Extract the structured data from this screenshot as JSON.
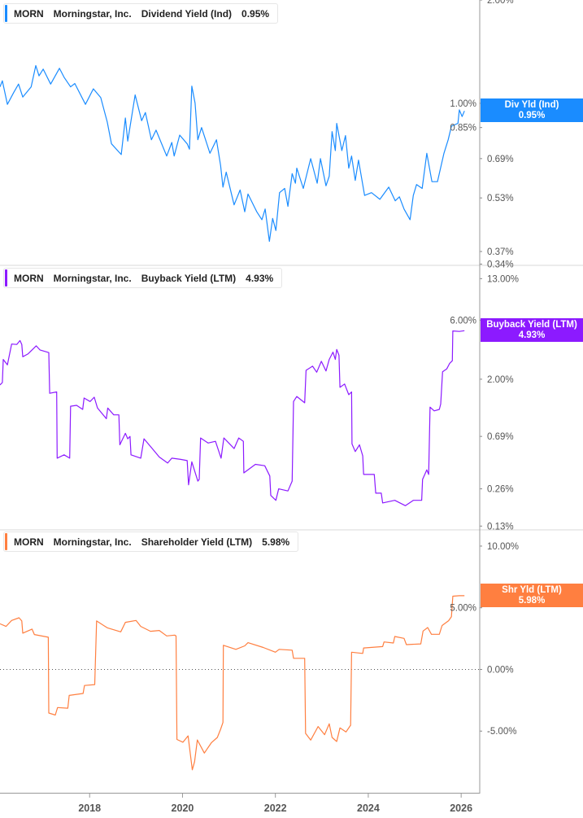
{
  "colors": {
    "div": "#1a8cff",
    "buyback": "#8c1aff",
    "shr": "#ff7f40",
    "axis": "#888888"
  },
  "chart_data": [
    {
      "type": "line",
      "legend": {
        "ticker": "MORN",
        "company": "Morningstar, Inc.",
        "metric": "Dividend Yield (Ind)",
        "value": "0.95%"
      },
      "badge": {
        "label": "Div Yld (Ind)",
        "value": "0.95%"
      },
      "yscale": "log",
      "ylim": [
        0.339,
        2.0
      ],
      "yticks": [
        2.0,
        1.0,
        0.85,
        0.69,
        0.53,
        0.37,
        0.34
      ],
      "ytick_labels": [
        "2.00%",
        "1.00%",
        "0.85%",
        "0.69%",
        "0.53%",
        "0.37%",
        "0.34%"
      ],
      "points": [
        [
          2016.07,
          1.117
        ],
        [
          2016.12,
          1.163
        ],
        [
          2016.23,
          0.993
        ],
        [
          2016.37,
          1.078
        ],
        [
          2016.47,
          1.138
        ],
        [
          2016.56,
          1.043
        ],
        [
          2016.74,
          1.117
        ],
        [
          2016.84,
          1.288
        ],
        [
          2016.91,
          1.202
        ],
        [
          2017.0,
          1.258
        ],
        [
          2017.16,
          1.138
        ],
        [
          2017.35,
          1.265
        ],
        [
          2017.45,
          1.191
        ],
        [
          2017.59,
          1.117
        ],
        [
          2017.68,
          1.142
        ],
        [
          2017.91,
          0.993
        ],
        [
          2018.08,
          1.102
        ],
        [
          2018.24,
          1.039
        ],
        [
          2018.38,
          0.882
        ],
        [
          2018.47,
          0.762
        ],
        [
          2018.68,
          0.709
        ],
        [
          2018.77,
          0.906
        ],
        [
          2018.82,
          0.776
        ],
        [
          2018.98,
          1.058
        ],
        [
          2019.12,
          0.89
        ],
        [
          2019.2,
          0.94
        ],
        [
          2019.33,
          0.783
        ],
        [
          2019.43,
          0.835
        ],
        [
          2019.66,
          0.702
        ],
        [
          2019.77,
          0.769
        ],
        [
          2019.82,
          0.702
        ],
        [
          2019.94,
          0.808
        ],
        [
          2020.1,
          0.762
        ],
        [
          2020.15,
          0.735
        ],
        [
          2020.2,
          1.122
        ],
        [
          2020.27,
          1.002
        ],
        [
          2020.33,
          0.783
        ],
        [
          2020.41,
          0.85
        ],
        [
          2020.59,
          0.715
        ],
        [
          2020.73,
          0.783
        ],
        [
          2020.82,
          0.659
        ],
        [
          2020.87,
          0.57
        ],
        [
          2020.94,
          0.63
        ],
        [
          2021.11,
          0.506
        ],
        [
          2021.24,
          0.559
        ],
        [
          2021.34,
          0.483
        ],
        [
          2021.41,
          0.544
        ],
        [
          2021.6,
          0.483
        ],
        [
          2021.71,
          0.458
        ],
        [
          2021.78,
          0.492
        ],
        [
          2021.87,
          0.396
        ],
        [
          2021.94,
          0.462
        ],
        [
          2022.01,
          0.426
        ],
        [
          2022.09,
          0.549
        ],
        [
          2022.2,
          0.565
        ],
        [
          2022.27,
          0.501
        ],
        [
          2022.36,
          0.624
        ],
        [
          2022.43,
          0.585
        ],
        [
          2022.46,
          0.647
        ],
        [
          2022.6,
          0.565
        ],
        [
          2022.76,
          0.69
        ],
        [
          2022.9,
          0.585
        ],
        [
          2022.97,
          0.69
        ],
        [
          2023.09,
          0.575
        ],
        [
          2023.16,
          0.613
        ],
        [
          2023.22,
          0.827
        ],
        [
          2023.29,
          0.728
        ],
        [
          2023.32,
          0.874
        ],
        [
          2023.43,
          0.728
        ],
        [
          2023.51,
          0.805
        ],
        [
          2023.58,
          0.647
        ],
        [
          2023.64,
          0.702
        ],
        [
          2023.72,
          0.596
        ],
        [
          2023.79,
          0.683
        ],
        [
          2023.92,
          0.539
        ],
        [
          2024.07,
          0.549
        ],
        [
          2024.25,
          0.525
        ],
        [
          2024.44,
          0.57
        ],
        [
          2024.58,
          0.52
        ],
        [
          2024.67,
          0.534
        ],
        [
          2024.77,
          0.492
        ],
        [
          2024.9,
          0.458
        ],
        [
          2024.97,
          0.539
        ],
        [
          2025.04,
          0.58
        ],
        [
          2025.16,
          0.565
        ],
        [
          2025.26,
          0.715
        ],
        [
          2025.37,
          0.591
        ],
        [
          2025.49,
          0.591
        ],
        [
          2025.63,
          0.715
        ],
        [
          2025.72,
          0.783
        ],
        [
          2025.79,
          0.858
        ],
        [
          2025.93,
          0.874
        ],
        [
          2025.96,
          0.957
        ],
        [
          2026.02,
          0.915
        ],
        [
          2026.07,
          0.95
        ]
      ]
    },
    {
      "type": "line",
      "legend": {
        "ticker": "MORN",
        "company": "Morningstar, Inc.",
        "metric": "Buyback Yield (LTM)",
        "value": "4.93%"
      },
      "badge": {
        "label": "Buyback Yield (LTM)",
        "value": "4.93%"
      },
      "yscale": "log",
      "ylim": [
        0.123,
        16.4
      ],
      "yticks": [
        13.0,
        6.0,
        2.0,
        0.69,
        0.26,
        0.13
      ],
      "ytick_labels": [
        "13.00%",
        "6.00%",
        "2.00%",
        "0.69%",
        "0.26%",
        "0.13%"
      ],
      "points": [
        [
          2016.07,
          1.8
        ],
        [
          2016.12,
          1.88
        ],
        [
          2016.14,
          2.89
        ],
        [
          2016.23,
          2.61
        ],
        [
          2016.32,
          3.85
        ],
        [
          2016.43,
          3.82
        ],
        [
          2016.5,
          4.11
        ],
        [
          2016.54,
          3.82
        ],
        [
          2016.56,
          3.04
        ],
        [
          2016.67,
          3.2
        ],
        [
          2016.85,
          3.72
        ],
        [
          2016.93,
          3.45
        ],
        [
          2017.12,
          3.28
        ],
        [
          2017.14,
          1.54
        ],
        [
          2017.29,
          1.58
        ],
        [
          2017.3,
          0.46
        ],
        [
          2017.45,
          0.49
        ],
        [
          2017.57,
          0.46
        ],
        [
          2017.59,
          1.21
        ],
        [
          2017.72,
          1.23
        ],
        [
          2017.85,
          1.14
        ],
        [
          2017.88,
          1.41
        ],
        [
          2018.01,
          1.32
        ],
        [
          2018.1,
          1.43
        ],
        [
          2018.17,
          1.17
        ],
        [
          2018.36,
          0.96
        ],
        [
          2018.39,
          1.17
        ],
        [
          2018.52,
          1.03
        ],
        [
          2018.63,
          1.03
        ],
        [
          2018.65,
          0.59
        ],
        [
          2018.77,
          0.73
        ],
        [
          2018.82,
          0.66
        ],
        [
          2018.87,
          0.69
        ],
        [
          2018.89,
          0.49
        ],
        [
          2019.1,
          0.46
        ],
        [
          2019.17,
          0.66
        ],
        [
          2019.33,
          0.56
        ],
        [
          2019.5,
          0.47
        ],
        [
          2019.68,
          0.42
        ],
        [
          2019.77,
          0.46
        ],
        [
          2019.96,
          0.45
        ],
        [
          2020.1,
          0.44
        ],
        [
          2020.13,
          0.28
        ],
        [
          2020.2,
          0.43
        ],
        [
          2020.33,
          0.3
        ],
        [
          2020.36,
          0.31
        ],
        [
          2020.39,
          0.67
        ],
        [
          2020.55,
          0.61
        ],
        [
          2020.71,
          0.63
        ],
        [
          2020.83,
          0.46
        ],
        [
          2020.89,
          0.67
        ],
        [
          2021.11,
          0.55
        ],
        [
          2021.21,
          0.67
        ],
        [
          2021.31,
          0.63
        ],
        [
          2021.32,
          0.35
        ],
        [
          2021.57,
          0.41
        ],
        [
          2021.77,
          0.4
        ],
        [
          2021.88,
          0.33
        ],
        [
          2021.9,
          0.23
        ],
        [
          2022.01,
          0.21
        ],
        [
          2022.07,
          0.26
        ],
        [
          2022.27,
          0.25
        ],
        [
          2022.36,
          0.3
        ],
        [
          2022.39,
          1.32
        ],
        [
          2022.46,
          1.45
        ],
        [
          2022.63,
          1.29
        ],
        [
          2022.66,
          2.36
        ],
        [
          2022.8,
          2.55
        ],
        [
          2022.89,
          2.28
        ],
        [
          2022.99,
          2.79
        ],
        [
          2023.09,
          2.33
        ],
        [
          2023.16,
          2.89
        ],
        [
          2023.24,
          3.31
        ],
        [
          2023.29,
          2.89
        ],
        [
          2023.32,
          3.48
        ],
        [
          2023.37,
          3.12
        ],
        [
          2023.39,
          1.72
        ],
        [
          2023.49,
          1.83
        ],
        [
          2023.58,
          1.5
        ],
        [
          2023.64,
          1.58
        ],
        [
          2023.65,
          0.6
        ],
        [
          2023.72,
          0.52
        ],
        [
          2023.81,
          0.59
        ],
        [
          2023.88,
          0.48
        ],
        [
          2023.9,
          0.34
        ],
        [
          2024.13,
          0.34
        ],
        [
          2024.16,
          0.24
        ],
        [
          2024.28,
          0.24
        ],
        [
          2024.31,
          0.2
        ],
        [
          2024.57,
          0.21
        ],
        [
          2024.8,
          0.19
        ],
        [
          2024.97,
          0.21
        ],
        [
          2025.15,
          0.21
        ],
        [
          2025.17,
          0.31
        ],
        [
          2025.26,
          0.37
        ],
        [
          2025.3,
          0.34
        ],
        [
          2025.33,
          1.19
        ],
        [
          2025.42,
          1.11
        ],
        [
          2025.53,
          1.14
        ],
        [
          2025.56,
          1.26
        ],
        [
          2025.6,
          2.3
        ],
        [
          2025.69,
          2.42
        ],
        [
          2025.75,
          2.68
        ],
        [
          2025.81,
          2.82
        ],
        [
          2025.82,
          4.91
        ],
        [
          2025.96,
          4.87
        ],
        [
          2026.07,
          4.93
        ]
      ]
    },
    {
      "type": "line",
      "legend": {
        "ticker": "MORN",
        "company": "Morningstar, Inc.",
        "metric": "Shareholder Yield (LTM)",
        "value": "5.98%"
      },
      "badge": {
        "label": "Shr Yld (LTM)",
        "value": "5.98%"
      },
      "yscale": "linear",
      "ylim": [
        -10,
        11.25
      ],
      "yticks": [
        10,
        5,
        0,
        -5
      ],
      "ytick_labels": [
        "10.00%",
        "5.00%",
        "0.00%",
        "-5.00%"
      ],
      "zero_line": true,
      "points": [
        [
          2016.07,
          3.7
        ],
        [
          2016.2,
          3.49
        ],
        [
          2016.32,
          3.97
        ],
        [
          2016.48,
          4.19
        ],
        [
          2016.54,
          3.93
        ],
        [
          2016.56,
          2.94
        ],
        [
          2016.76,
          3.27
        ],
        [
          2016.81,
          2.83
        ],
        [
          2017.11,
          2.61
        ],
        [
          2017.12,
          -3.53
        ],
        [
          2017.26,
          -3.7
        ],
        [
          2017.31,
          -3.09
        ],
        [
          2017.53,
          -3.14
        ],
        [
          2017.56,
          -2.11
        ],
        [
          2017.86,
          -1.95
        ],
        [
          2017.89,
          -1.3
        ],
        [
          2018.11,
          -1.23
        ],
        [
          2018.15,
          3.93
        ],
        [
          2018.38,
          3.38
        ],
        [
          2018.67,
          3.05
        ],
        [
          2018.77,
          3.82
        ],
        [
          2019.0,
          3.97
        ],
        [
          2019.1,
          3.49
        ],
        [
          2019.31,
          3.09
        ],
        [
          2019.5,
          3.16
        ],
        [
          2019.66,
          2.72
        ],
        [
          2019.83,
          2.78
        ],
        [
          2019.86,
          2.72
        ],
        [
          2019.88,
          -5.68
        ],
        [
          2020.01,
          -5.9
        ],
        [
          2020.12,
          -5.39
        ],
        [
          2020.21,
          -8.14
        ],
        [
          2020.26,
          -7.48
        ],
        [
          2020.32,
          -5.72
        ],
        [
          2020.47,
          -6.78
        ],
        [
          2020.62,
          -5.95
        ],
        [
          2020.75,
          -5.51
        ],
        [
          2020.82,
          -4.85
        ],
        [
          2020.87,
          -4.3
        ],
        [
          2020.88,
          1.96
        ],
        [
          2021.15,
          1.63
        ],
        [
          2021.34,
          1.91
        ],
        [
          2021.41,
          2.17
        ],
        [
          2021.74,
          1.78
        ],
        [
          2022.0,
          1.4
        ],
        [
          2022.08,
          1.63
        ],
        [
          2022.36,
          1.56
        ],
        [
          2022.39,
          0.9
        ],
        [
          2022.63,
          0.9
        ],
        [
          2022.65,
          -5.18
        ],
        [
          2022.76,
          -5.73
        ],
        [
          2022.92,
          -4.63
        ],
        [
          2023.06,
          -5.29
        ],
        [
          2023.16,
          -4.41
        ],
        [
          2023.22,
          -5.51
        ],
        [
          2023.32,
          -5.84
        ],
        [
          2023.39,
          -4.74
        ],
        [
          2023.52,
          -5.07
        ],
        [
          2023.62,
          -4.52
        ],
        [
          2023.64,
          1.4
        ],
        [
          2023.88,
          1.3
        ],
        [
          2023.9,
          1.74
        ],
        [
          2024.31,
          1.85
        ],
        [
          2024.34,
          2.23
        ],
        [
          2024.54,
          2.14
        ],
        [
          2024.57,
          2.67
        ],
        [
          2024.77,
          2.52
        ],
        [
          2024.82,
          2.01
        ],
        [
          2025.13,
          2.07
        ],
        [
          2025.18,
          3.11
        ],
        [
          2025.28,
          3.4
        ],
        [
          2025.36,
          2.85
        ],
        [
          2025.53,
          2.85
        ],
        [
          2025.59,
          3.56
        ],
        [
          2025.73,
          3.95
        ],
        [
          2025.79,
          4.28
        ],
        [
          2025.82,
          5.94
        ],
        [
          2025.96,
          5.98
        ],
        [
          2026.07,
          5.98
        ]
      ]
    }
  ],
  "x_axis": {
    "xlim": [
      2016.07,
      2026.4
    ],
    "ticks": [
      2018,
      2020,
      2022,
      2024,
      2026
    ],
    "tick_labels": [
      "2018",
      "2020",
      "2022",
      "2024",
      "2026"
    ]
  }
}
